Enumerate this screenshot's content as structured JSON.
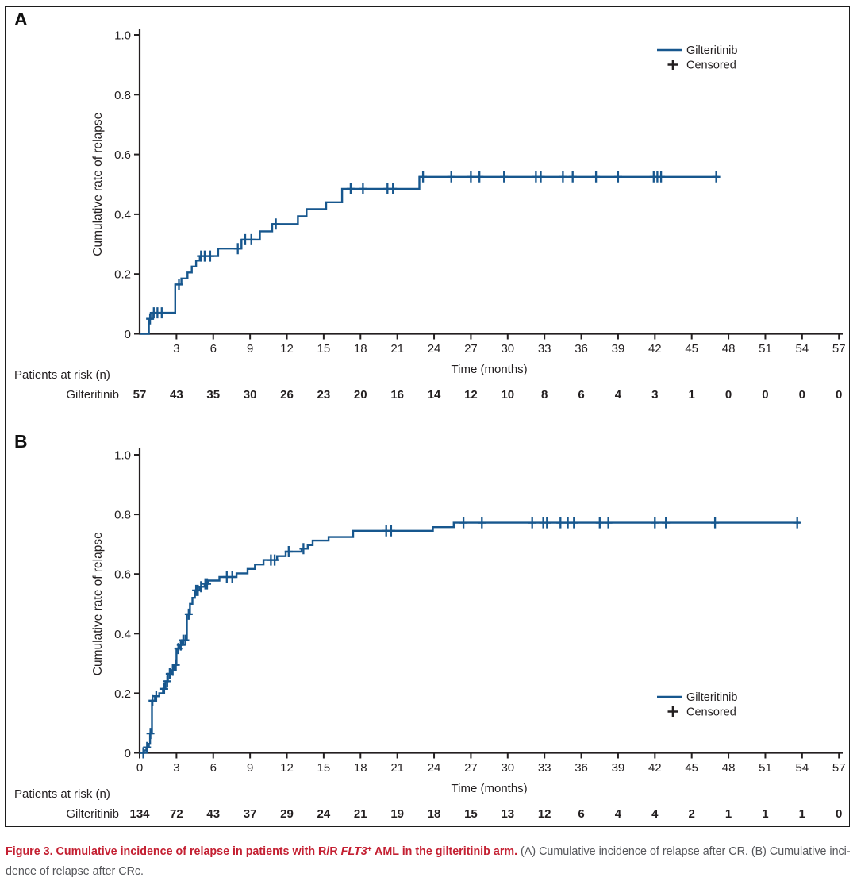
{
  "colors": {
    "curve": "#17578E",
    "axis": "#231F20",
    "text": "#231F20",
    "legend_plus": "#231F20",
    "caption_red": "#C42032",
    "caption_text": "#55565A"
  },
  "chart_data": [
    {
      "panel_label": "A",
      "type": "line",
      "step": true,
      "title": "",
      "xlabel": "Time (months)",
      "ylabel": "Cumulative rate of relapse",
      "xlim": [
        0,
        57
      ],
      "ylim": [
        0,
        1.0
      ],
      "grid": false,
      "legend_position": "top-right",
      "x_ticks": [
        3,
        6,
        9,
        12,
        15,
        18,
        21,
        24,
        27,
        30,
        33,
        36,
        39,
        42,
        45,
        48,
        51,
        54,
        57
      ],
      "y_ticks": [
        {
          "v": 0,
          "label": "0"
        },
        {
          "v": 0.2,
          "label": "0.2"
        },
        {
          "v": 0.4,
          "label": "0.4"
        },
        {
          "v": 0.6,
          "label": "0.6"
        },
        {
          "v": 0.8,
          "label": "0.8"
        },
        {
          "v": 1.0,
          "label": "1.0"
        }
      ],
      "legend": [
        {
          "label": "Gilteritinib",
          "marker": "line"
        },
        {
          "label": "Censored",
          "marker": "plus"
        }
      ],
      "series": [
        {
          "name": "Gilteritinib",
          "steps": [
            [
              0,
              0
            ],
            [
              0.75,
              0.05
            ],
            [
              1.0,
              0.07
            ],
            [
              2.9,
              0.165
            ],
            [
              3.4,
              0.185
            ],
            [
              3.9,
              0.205
            ],
            [
              4.25,
              0.225
            ],
            [
              4.6,
              0.245
            ],
            [
              4.9,
              0.26
            ],
            [
              6.4,
              0.285
            ],
            [
              8.3,
              0.315
            ],
            [
              9.8,
              0.343
            ],
            [
              10.8,
              0.367
            ],
            [
              12.9,
              0.393
            ],
            [
              13.6,
              0.417
            ],
            [
              15.2,
              0.44
            ],
            [
              16.5,
              0.485
            ],
            [
              22.8,
              0.525
            ]
          ],
          "end": 47.2,
          "censored": [
            [
              0.85,
              0.05
            ],
            [
              1.15,
              0.07
            ],
            [
              1.45,
              0.07
            ],
            [
              1.8,
              0.07
            ],
            [
              3.2,
              0.165
            ],
            [
              5.0,
              0.26
            ],
            [
              5.3,
              0.26
            ],
            [
              5.75,
              0.26
            ],
            [
              8.0,
              0.285
            ],
            [
              8.6,
              0.315
            ],
            [
              9.1,
              0.315
            ],
            [
              11.1,
              0.367
            ],
            [
              17.2,
              0.485
            ],
            [
              18.2,
              0.485
            ],
            [
              20.2,
              0.485
            ],
            [
              20.65,
              0.485
            ],
            [
              23.1,
              0.525
            ],
            [
              25.4,
              0.525
            ],
            [
              27.0,
              0.525
            ],
            [
              27.7,
              0.525
            ],
            [
              29.7,
              0.525
            ],
            [
              32.3,
              0.525
            ],
            [
              32.7,
              0.525
            ],
            [
              34.5,
              0.525
            ],
            [
              35.3,
              0.525
            ],
            [
              37.2,
              0.525
            ],
            [
              39.0,
              0.525
            ],
            [
              41.9,
              0.525
            ],
            [
              42.2,
              0.525
            ],
            [
              42.5,
              0.525
            ],
            [
              47.0,
              0.525
            ]
          ]
        }
      ],
      "at_risk": {
        "header": "Patients at risk (n)",
        "row_label": "Gilteritinib",
        "times": [
          0,
          3,
          6,
          9,
          12,
          15,
          18,
          21,
          24,
          27,
          30,
          33,
          36,
          39,
          42,
          45,
          48,
          51,
          54,
          57
        ],
        "values": [
          57,
          43,
          35,
          30,
          26,
          23,
          20,
          16,
          14,
          12,
          10,
          8,
          6,
          4,
          3,
          1,
          0,
          0,
          0,
          0
        ]
      }
    },
    {
      "panel_label": "B",
      "type": "line",
      "step": true,
      "title": "",
      "xlabel": "Time (months)",
      "ylabel": "Cumulative rate of relapse",
      "xlim": [
        0,
        57
      ],
      "ylim": [
        0,
        1.0
      ],
      "grid": false,
      "legend_position": "right-middle",
      "x_ticks": [
        0,
        3,
        6,
        9,
        12,
        15,
        18,
        21,
        24,
        27,
        30,
        33,
        36,
        39,
        42,
        45,
        48,
        51,
        54,
        57
      ],
      "y_ticks": [
        {
          "v": 0,
          "label": "0"
        },
        {
          "v": 0.2,
          "label": "0.2"
        },
        {
          "v": 0.4,
          "label": "0.4"
        },
        {
          "v": 0.6,
          "label": "0.6"
        },
        {
          "v": 0.8,
          "label": "0.8"
        },
        {
          "v": 1.0,
          "label": "1.0"
        }
      ],
      "legend": [
        {
          "label": "Gilteritinib",
          "marker": "line"
        },
        {
          "label": "Censored",
          "marker": "plus"
        }
      ],
      "series": [
        {
          "name": "Gilteritinib",
          "steps": [
            [
              0,
              0
            ],
            [
              0.35,
              0.008
            ],
            [
              0.55,
              0.018
            ],
            [
              0.75,
              0.03
            ],
            [
              0.85,
              0.065
            ],
            [
              1.0,
              0.175
            ],
            [
              1.25,
              0.19
            ],
            [
              1.6,
              0.2
            ],
            [
              1.9,
              0.215
            ],
            [
              2.1,
              0.24
            ],
            [
              2.3,
              0.265
            ],
            [
              2.6,
              0.277
            ],
            [
              2.8,
              0.295
            ],
            [
              3.0,
              0.35
            ],
            [
              3.25,
              0.362
            ],
            [
              3.45,
              0.378
            ],
            [
              3.85,
              0.465
            ],
            [
              4.1,
              0.5
            ],
            [
              4.3,
              0.52
            ],
            [
              4.5,
              0.545
            ],
            [
              4.9,
              0.557
            ],
            [
              5.3,
              0.567
            ],
            [
              5.6,
              0.578
            ],
            [
              6.5,
              0.59
            ],
            [
              7.9,
              0.602
            ],
            [
              8.8,
              0.617
            ],
            [
              9.4,
              0.632
            ],
            [
              10.1,
              0.647
            ],
            [
              11.2,
              0.66
            ],
            [
              11.9,
              0.675
            ],
            [
              13.2,
              0.685
            ],
            [
              13.7,
              0.697
            ],
            [
              14.1,
              0.712
            ],
            [
              15.4,
              0.724
            ],
            [
              17.4,
              0.745
            ],
            [
              23.9,
              0.757
            ],
            [
              25.6,
              0.772
            ]
          ],
          "end": 53.8,
          "censored": [
            [
              0.3,
              0
            ],
            [
              0.6,
              0.018
            ],
            [
              0.88,
              0.065
            ],
            [
              1.05,
              0.175
            ],
            [
              1.35,
              0.19
            ],
            [
              2.0,
              0.215
            ],
            [
              2.25,
              0.24
            ],
            [
              2.45,
              0.265
            ],
            [
              2.7,
              0.277
            ],
            [
              2.95,
              0.295
            ],
            [
              3.15,
              0.35
            ],
            [
              3.35,
              0.362
            ],
            [
              3.55,
              0.378
            ],
            [
              3.72,
              0.378
            ],
            [
              4.0,
              0.465
            ],
            [
              4.6,
              0.545
            ],
            [
              4.75,
              0.545
            ],
            [
              5.0,
              0.557
            ],
            [
              5.35,
              0.567
            ],
            [
              5.5,
              0.567
            ],
            [
              7.1,
              0.59
            ],
            [
              7.55,
              0.59
            ],
            [
              10.7,
              0.647
            ],
            [
              11.0,
              0.647
            ],
            [
              12.15,
              0.675
            ],
            [
              13.35,
              0.685
            ],
            [
              20.1,
              0.745
            ],
            [
              20.5,
              0.745
            ],
            [
              26.4,
              0.772
            ],
            [
              27.9,
              0.772
            ],
            [
              32.0,
              0.772
            ],
            [
              32.9,
              0.772
            ],
            [
              33.2,
              0.772
            ],
            [
              34.3,
              0.772
            ],
            [
              34.9,
              0.772
            ],
            [
              35.4,
              0.772
            ],
            [
              37.5,
              0.772
            ],
            [
              38.2,
              0.772
            ],
            [
              42.0,
              0.772
            ],
            [
              42.9,
              0.772
            ],
            [
              46.9,
              0.772
            ],
            [
              53.6,
              0.772
            ]
          ]
        }
      ],
      "at_risk": {
        "header": "Patients at risk (n)",
        "row_label": "Gilteritinib",
        "times": [
          0,
          3,
          6,
          9,
          12,
          15,
          18,
          21,
          24,
          27,
          30,
          33,
          36,
          39,
          42,
          45,
          48,
          51,
          54,
          57
        ],
        "values": [
          134,
          72,
          43,
          37,
          29,
          24,
          21,
          19,
          18,
          15,
          13,
          12,
          6,
          4,
          4,
          2,
          1,
          1,
          1,
          0
        ]
      }
    }
  ],
  "caption": {
    "lines": [
      {
        "segments": [
          {
            "text": "Figure 3. Cumulative incidence of relapse in patients with R/R ",
            "style": "red-bold"
          },
          {
            "text": "FLT3",
            "style": "red-bold-italic"
          },
          {
            "text": "+",
            "style": "red-bold-sup"
          },
          {
            "text": " AML in the gilteritinib arm.",
            "style": "red-bold"
          },
          {
            "text": " (A) Cumulative incidence of relapse after CR. (B) Cumulative inci-",
            "style": "plain"
          }
        ]
      },
      {
        "segments": [
          {
            "text": "dence of relapse after CRc.",
            "style": "plain"
          }
        ]
      }
    ]
  }
}
